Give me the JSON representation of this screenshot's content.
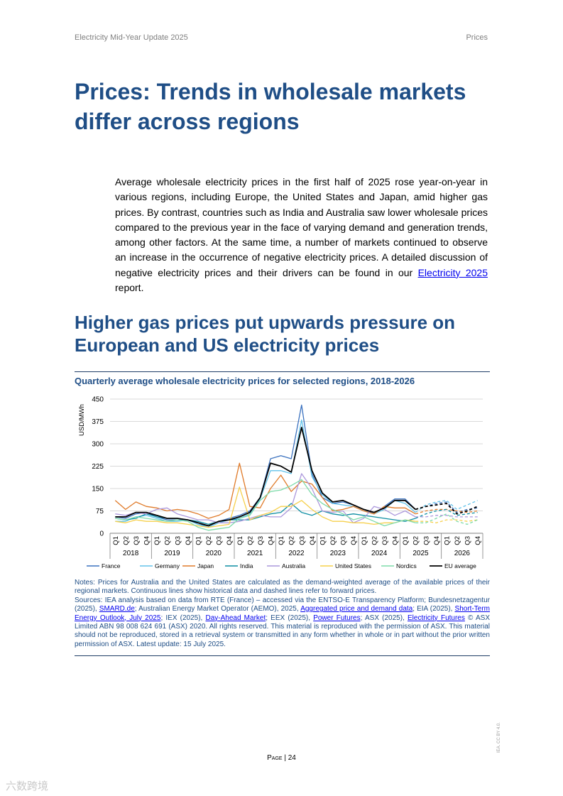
{
  "header": {
    "left": "Electricity Mid-Year Update 2025",
    "right": "Prices"
  },
  "title": "Prices: Trends in wholesale markets differ across regions",
  "intro": {
    "text": "Average wholesale electricity prices in the first half of 2025 rose year-on-year in various regions, including Europe, the United States and Japan, amid higher gas prices. By contrast, countries such as India and Australia saw lower wholesale prices compared to the previous year in the face of varying demand and generation trends, among other factors. At the same time, a number of markets continued to observe an increase in the occurrence of negative electricity prices. A detailed discussion of negative electricity prices and their drivers can be found in our ",
    "link": "Electricity 2025",
    "tail": " report."
  },
  "subtitle": "Higher gas prices put upwards pressure on European and US electricity prices",
  "chart_title": "Quarterly average wholesale electricity prices for selected regions, 2018-2026",
  "chart_data": {
    "type": "line",
    "ylabel": "USD/MWh",
    "ylim": [
      0,
      450
    ],
    "yticks": [
      "0",
      "75",
      "150",
      "225",
      "300",
      "375",
      "450"
    ],
    "quarter_labels": [
      "Q1",
      "Q2",
      "Q3",
      "Q4"
    ],
    "years": [
      "2018",
      "2019",
      "2020",
      "2021",
      "2022",
      "2023",
      "2024",
      "2025",
      "2026"
    ],
    "historical_count": 30,
    "series": [
      {
        "name": "France",
        "color": "#3b72bf",
        "values": [
          55,
          50,
          65,
          70,
          55,
          45,
          45,
          45,
          30,
          25,
          40,
          50,
          60,
          75,
          120,
          250,
          260,
          250,
          430,
          200,
          120,
          100,
          105,
          95,
          80,
          65,
          90,
          115,
          115,
          80,
          90,
          100,
          105,
          70,
          80,
          85
        ]
      },
      {
        "name": "Germany",
        "color": "#63c3ea",
        "values": [
          40,
          40,
          55,
          60,
          50,
          40,
          40,
          45,
          30,
          20,
          35,
          45,
          50,
          65,
          115,
          210,
          210,
          200,
          380,
          190,
          130,
          100,
          95,
          90,
          75,
          65,
          80,
          110,
          100,
          70,
          95,
          105,
          110,
          80,
          95,
          110
        ]
      },
      {
        "name": "Japan",
        "color": "#e07b2a",
        "values": [
          110,
          80,
          105,
          90,
          85,
          75,
          80,
          75,
          65,
          50,
          60,
          80,
          235,
          90,
          85,
          150,
          195,
          140,
          175,
          165,
          120,
          75,
          80,
          90,
          75,
          65,
          90,
          85,
          85,
          65,
          75,
          80,
          80,
          75,
          70,
          75
        ]
      },
      {
        "name": "India",
        "color": "#0e8ea3",
        "values": [
          50,
          45,
          50,
          65,
          55,
          50,
          50,
          45,
          40,
          30,
          40,
          45,
          45,
          45,
          55,
          65,
          70,
          100,
          70,
          60,
          75,
          65,
          60,
          65,
          60,
          55,
          50,
          45,
          40,
          50,
          65,
          75,
          80,
          60,
          65,
          70
        ]
      },
      {
        "name": "Australia",
        "color": "#ac98dc",
        "values": [
          65,
          60,
          70,
          65,
          80,
          85,
          65,
          55,
          45,
          45,
          35,
          35,
          40,
          50,
          60,
          55,
          55,
          85,
          200,
          150,
          75,
          70,
          75,
          35,
          50,
          90,
          80,
          60,
          75,
          55,
          55,
          60,
          60,
          55,
          55,
          55
        ]
      },
      {
        "name": "United States",
        "color": "#f6d04c",
        "values": [
          40,
          35,
          45,
          40,
          40,
          35,
          35,
          30,
          25,
          20,
          25,
          30,
          155,
          45,
          60,
          70,
          90,
          90,
          110,
          80,
          55,
          40,
          40,
          35,
          35,
          30,
          35,
          35,
          45,
          40,
          40,
          35,
          45,
          45,
          40,
          45
        ]
      },
      {
        "name": "Nordics",
        "color": "#7edbaa",
        "values": [
          50,
          45,
          55,
          50,
          45,
          40,
          45,
          40,
          20,
          10,
          15,
          20,
          50,
          60,
          110,
          140,
          145,
          160,
          180,
          130,
          100,
          80,
          65,
          45,
          55,
          40,
          25,
          35,
          45,
          35,
          35,
          50,
          65,
          40,
          30,
          45
        ]
      },
      {
        "name": "EU average",
        "color": "#000000",
        "values": [
          55,
          55,
          70,
          70,
          60,
          50,
          50,
          45,
          35,
          25,
          40,
          45,
          55,
          70,
          120,
          235,
          225,
          205,
          355,
          210,
          135,
          105,
          110,
          95,
          80,
          70,
          85,
          110,
          110,
          80,
          90,
          95,
          100,
          65,
          75,
          90
        ]
      }
    ]
  },
  "notes": {
    "note": "Notes: Prices for Australia and the United States are calculated as the demand-weighted average of the available prices of their regional markets. Continuous lines show historical data and dashed lines refer to forward prices.",
    "s1": "Sources: IEA analysis based on data from RTE (France) – accessed via the ENTSO-E Transparency Platform; Bundesnetzagentur (2025), ",
    "l1": "SMARD.de",
    "s2": "; Australian Energy Market Operator (AEMO), 2025, ",
    "l2": "Aggregated price and demand data",
    "s3": "; EIA (2025), ",
    "l3": "Short-Term Energy Outlook, July 2025",
    "s4": "; IEX (2025), ",
    "l4": "Day-Ahead Market",
    "s5": "; EEX (2025), ",
    "l5": "Power Futures",
    "s6": "; ASX (2025), ",
    "l6": "Electricity Futures",
    "s7": " © ASX Limited ABN 98 008 624 691 (ASX) 2020. All rights reserved. This material is reproduced with the permission of ASX. This material should not be reproduced, stored in a retrieval system or transmitted in any form whether in whole or in part without the prior written permission of ASX. Latest update: 15 July 2025."
  },
  "footer": {
    "page_label": "Page",
    "page_number": "24"
  },
  "side_text": "IEA. CC BY 4.0.",
  "watermark": "六数跨境"
}
